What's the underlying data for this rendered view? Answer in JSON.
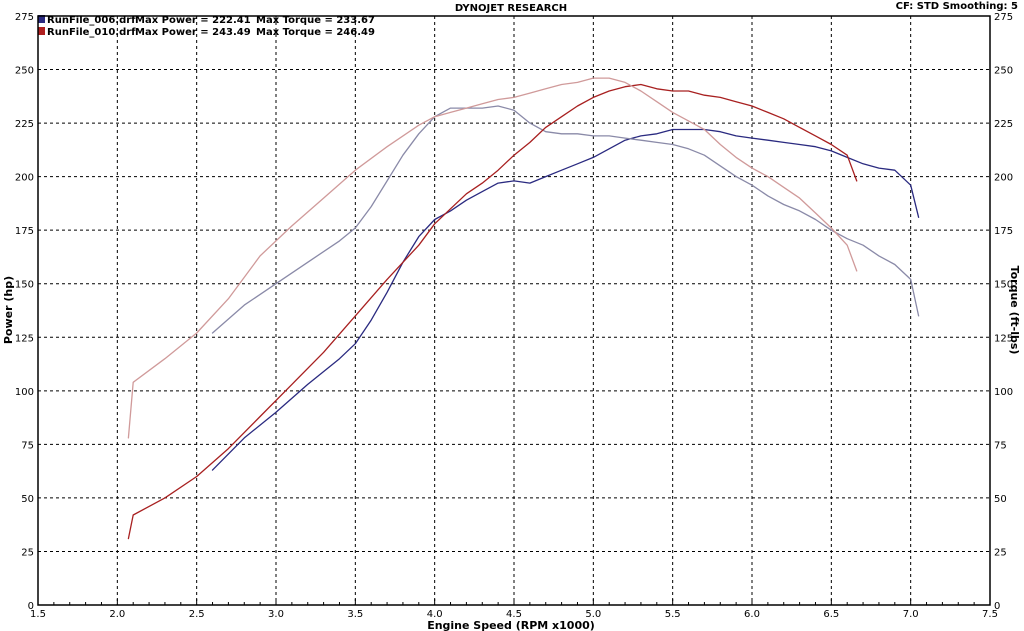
{
  "header": {
    "title": "DYNOJET RESEARCH",
    "settings": "CF: STD  Smoothing: 5"
  },
  "legend": [
    {
      "file": "RunFile_006.drf",
      "power_label": "Max Power = 222.41",
      "torque_label": "Max Torque = 233.67",
      "color": "#3a3a8c"
    },
    {
      "file": "RunFile_010.drf",
      "power_label": "Max Power = 243.49",
      "torque_label": "Max Torque = 246.49",
      "color": "#b02020"
    }
  ],
  "chart_data": {
    "type": "line",
    "title": "DYNOJET RESEARCH",
    "xlabel": "Engine Speed (RPM x1000)",
    "ylabel": "Power (hp)",
    "y2label": "Torque (ft-lbs)",
    "xlim": [
      1.5,
      7.5
    ],
    "ylim": [
      0,
      275
    ],
    "y2lim": [
      0,
      275
    ],
    "xticks": [
      1.5,
      2.0,
      2.5,
      3.0,
      3.5,
      4.0,
      4.5,
      5.0,
      5.5,
      6.0,
      6.5,
      7.0,
      7.5
    ],
    "yticks": [
      0,
      25,
      50,
      75,
      100,
      125,
      150,
      175,
      200,
      225,
      250,
      275
    ],
    "grid": true,
    "legend_position": "top-left",
    "series": [
      {
        "name": "RunFile_006.drf Power",
        "color": "#2a2a80",
        "axis": "left",
        "x": [
          2.6,
          2.8,
          3.0,
          3.2,
          3.4,
          3.5,
          3.6,
          3.7,
          3.8,
          3.9,
          4.0,
          4.1,
          4.2,
          4.3,
          4.4,
          4.5,
          4.6,
          4.7,
          4.8,
          4.9,
          5.0,
          5.1,
          5.2,
          5.3,
          5.4,
          5.5,
          5.6,
          5.7,
          5.8,
          5.9,
          6.0,
          6.1,
          6.2,
          6.3,
          6.4,
          6.5,
          6.6,
          6.7,
          6.8,
          6.9,
          7.0,
          7.05
        ],
        "y": [
          63,
          78,
          90,
          103,
          115,
          122,
          133,
          146,
          160,
          172,
          180,
          184,
          189,
          193,
          197,
          198,
          197,
          200,
          203,
          206,
          209,
          213,
          217,
          219,
          220,
          222,
          222,
          222,
          221,
          219,
          218,
          217,
          216,
          215,
          214,
          212,
          209,
          206,
          204,
          203,
          196,
          181
        ]
      },
      {
        "name": "RunFile_006.drf Torque",
        "color": "#8a8aa8",
        "axis": "right",
        "x": [
          2.6,
          2.8,
          3.0,
          3.2,
          3.4,
          3.5,
          3.6,
          3.7,
          3.8,
          3.9,
          4.0,
          4.1,
          4.2,
          4.3,
          4.4,
          4.5,
          4.6,
          4.7,
          4.8,
          4.9,
          5.0,
          5.1,
          5.2,
          5.3,
          5.4,
          5.5,
          5.6,
          5.7,
          5.8,
          5.9,
          6.0,
          6.1,
          6.2,
          6.3,
          6.4,
          6.5,
          6.6,
          6.7,
          6.8,
          6.9,
          7.0,
          7.05
        ],
        "y": [
          127,
          140,
          150,
          160,
          170,
          176,
          186,
          198,
          210,
          220,
          228,
          232,
          232,
          232,
          233,
          231,
          225,
          221,
          220,
          220,
          219,
          219,
          218,
          217,
          216,
          215,
          213,
          210,
          205,
          200,
          196,
          191,
          187,
          184,
          180,
          175,
          171,
          168,
          163,
          159,
          152,
          135
        ]
      },
      {
        "name": "RunFile_010.drf Power",
        "color": "#a82020",
        "axis": "left",
        "x": [
          2.07,
          2.1,
          2.3,
          2.5,
          2.7,
          2.9,
          3.1,
          3.3,
          3.5,
          3.7,
          3.9,
          4.0,
          4.1,
          4.2,
          4.3,
          4.4,
          4.5,
          4.6,
          4.7,
          4.8,
          4.9,
          5.0,
          5.1,
          5.2,
          5.3,
          5.4,
          5.5,
          5.6,
          5.7,
          5.8,
          5.9,
          6.0,
          6.1,
          6.2,
          6.3,
          6.4,
          6.5,
          6.6,
          6.66
        ],
        "y": [
          31,
          42,
          50,
          60,
          73,
          88,
          103,
          118,
          135,
          152,
          168,
          178,
          185,
          192,
          197,
          203,
          210,
          216,
          223,
          228,
          233,
          237,
          240,
          242,
          243,
          241,
          240,
          240,
          238,
          237,
          235,
          233,
          230,
          227,
          223,
          219,
          215,
          210,
          198
        ]
      },
      {
        "name": "RunFile_010.drf Torque",
        "color": "#d09a9a",
        "axis": "right",
        "x": [
          2.07,
          2.1,
          2.3,
          2.5,
          2.7,
          2.9,
          3.1,
          3.3,
          3.5,
          3.7,
          3.9,
          4.0,
          4.1,
          4.2,
          4.3,
          4.4,
          4.5,
          4.6,
          4.7,
          4.8,
          4.9,
          5.0,
          5.1,
          5.2,
          5.3,
          5.4,
          5.5,
          5.6,
          5.7,
          5.8,
          5.9,
          6.0,
          6.1,
          6.2,
          6.3,
          6.4,
          6.5,
          6.6,
          6.66
        ],
        "y": [
          78,
          104,
          115,
          127,
          143,
          163,
          177,
          190,
          203,
          214,
          224,
          228,
          230,
          232,
          234,
          236,
          237,
          239,
          241,
          243,
          244,
          246,
          246,
          244,
          240,
          235,
          230,
          226,
          222,
          215,
          209,
          204,
          200,
          195,
          190,
          183,
          176,
          168,
          156
        ]
      }
    ]
  }
}
